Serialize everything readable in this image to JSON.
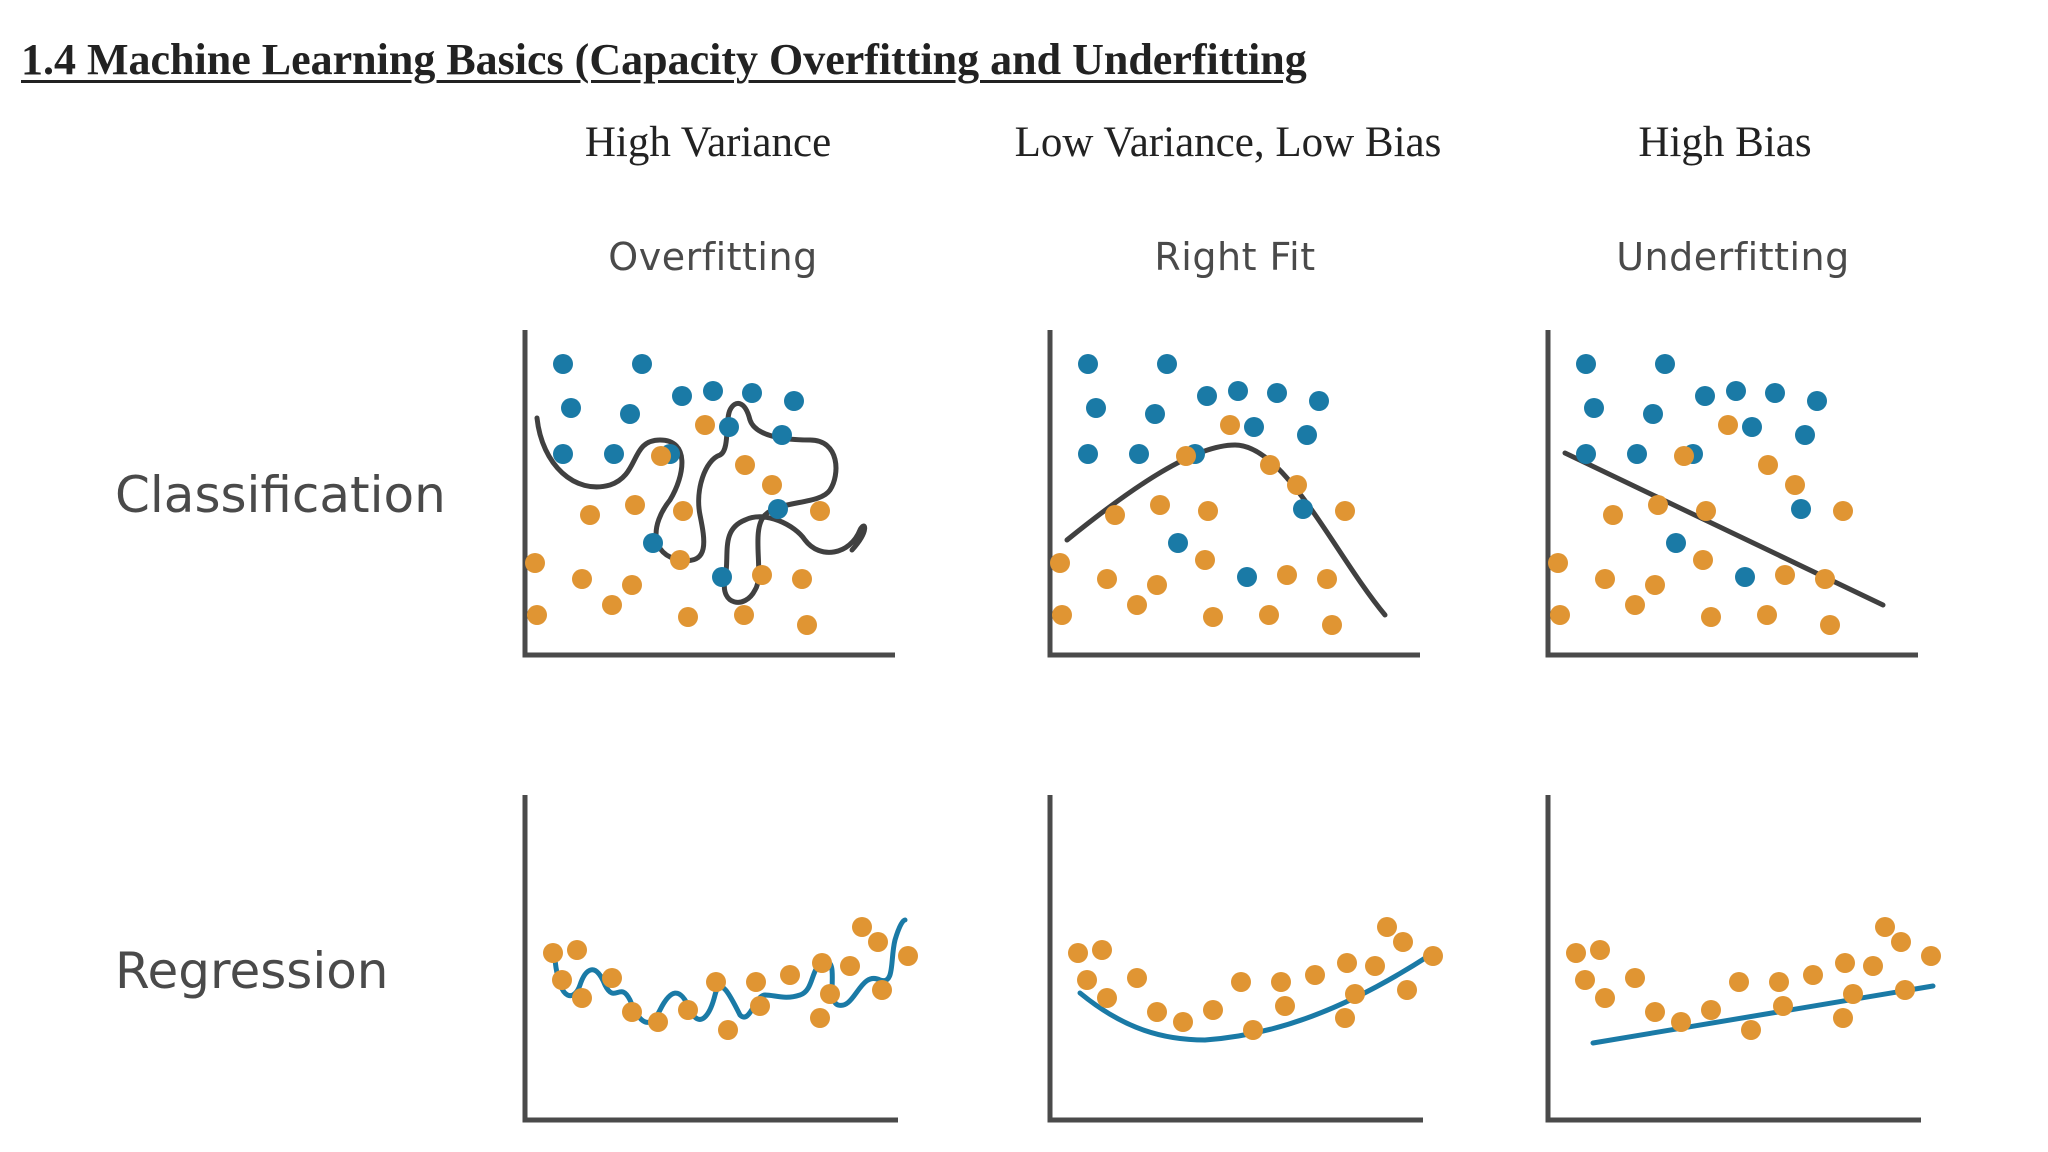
{
  "title": "1.4 Machine Learning Basics (Capacity Overfitting and Underfitting",
  "columns": [
    {
      "heading": "High Variance",
      "subheading": "Overfitting"
    },
    {
      "heading": "Low Variance, Low Bias",
      "subheading": "Right Fit"
    },
    {
      "heading": "High Bias",
      "subheading": "Underfitting"
    }
  ],
  "rows": [
    {
      "label": "Classification"
    },
    {
      "label": "Regression"
    }
  ],
  "colors": {
    "class_a_points": "#1a7aa6",
    "class_b_points": "#e09533",
    "boundary_curve": "#404040",
    "regression_curve": "#1a7aa6",
    "axes": "#4a4a4a"
  },
  "icons": []
}
